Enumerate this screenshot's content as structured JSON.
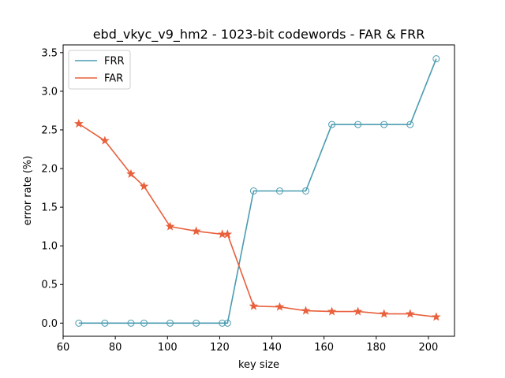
{
  "chart_data": {
    "type": "line",
    "title": "ebd_vkyc_v9_hm2 - 1023-bit codewords - FAR & FRR",
    "xlabel": "key size",
    "ylabel": "error rate (%)",
    "xlim": [
      60,
      210
    ],
    "ylim": [
      -0.17,
      3.6
    ],
    "xticks": [
      60,
      80,
      100,
      120,
      140,
      160,
      180,
      200
    ],
    "xtick_labels": [
      "60",
      "80",
      "100",
      "120",
      "140",
      "160",
      "180",
      "200"
    ],
    "yticks": [
      0.0,
      0.5,
      1.0,
      1.5,
      2.0,
      2.5,
      3.0,
      3.5
    ],
    "ytick_labels": [
      "0.0",
      "0.5",
      "1.0",
      "1.5",
      "2.0",
      "2.5",
      "3.0",
      "3.5"
    ],
    "grid": false,
    "legend": "top-left",
    "series": [
      {
        "name": "FRR",
        "color": "#4a9bb0",
        "marker": "circle-open",
        "x": [
          66,
          76,
          86,
          91,
          101,
          111,
          121,
          123,
          133,
          143,
          153,
          163,
          173,
          183,
          193,
          203
        ],
        "y": [
          0.0,
          0.0,
          0.0,
          0.0,
          0.0,
          0.0,
          0.0,
          0.0,
          1.71,
          1.71,
          1.71,
          2.57,
          2.57,
          2.57,
          2.57,
          3.42
        ]
      },
      {
        "name": "FAR",
        "color": "#e8603c",
        "marker": "star",
        "x": [
          66,
          76,
          86,
          91,
          101,
          111,
          121,
          123,
          133,
          143,
          153,
          163,
          173,
          183,
          193,
          203
        ],
        "y": [
          2.58,
          2.36,
          1.93,
          1.77,
          1.25,
          1.19,
          1.15,
          1.15,
          0.22,
          0.21,
          0.16,
          0.15,
          0.15,
          0.12,
          0.12,
          0.08
        ]
      }
    ]
  }
}
